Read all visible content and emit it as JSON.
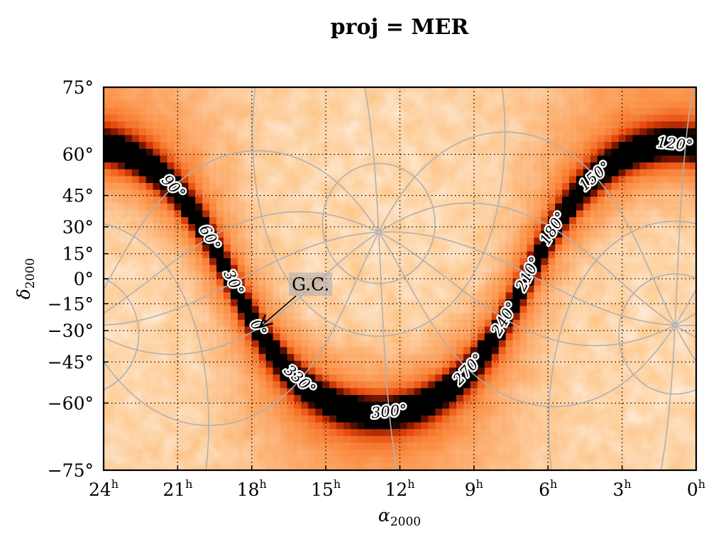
{
  "chart_data": {
    "type": "heatmap",
    "title": "proj = MER",
    "xlabel": "α",
    "xlabel_sub": "2000",
    "ylabel": "δ",
    "ylabel_sub": "2000",
    "xlim_hours": [
      24,
      0
    ],
    "ylim_deg": [
      -75,
      75
    ],
    "x_ticks": [
      {
        "value": 24,
        "label": "24",
        "unit": "h"
      },
      {
        "value": 21,
        "label": "21",
        "unit": "h"
      },
      {
        "value": 18,
        "label": "18",
        "unit": "h"
      },
      {
        "value": 15,
        "label": "15",
        "unit": "h"
      },
      {
        "value": 12,
        "label": "12",
        "unit": "h"
      },
      {
        "value": 9,
        "label": "9",
        "unit": "h"
      },
      {
        "value": 6,
        "label": "6",
        "unit": "h"
      },
      {
        "value": 3,
        "label": "3",
        "unit": "h"
      },
      {
        "value": 0,
        "label": "0",
        "unit": "h"
      }
    ],
    "y_ticks": [
      {
        "value": 75,
        "label": "75°"
      },
      {
        "value": 60,
        "label": "60°"
      },
      {
        "value": 45,
        "label": "45°"
      },
      {
        "value": 30,
        "label": "30°"
      },
      {
        "value": 15,
        "label": "15°"
      },
      {
        "value": 0,
        "label": "0°"
      },
      {
        "value": -15,
        "label": "−15°"
      },
      {
        "value": -30,
        "label": "−30°"
      },
      {
        "value": -45,
        "label": "−45°"
      },
      {
        "value": -60,
        "label": "−60°"
      },
      {
        "value": -75,
        "label": "−75°"
      }
    ],
    "grid": "dotted",
    "colormap": [
      "#ffffff",
      "#fde6cf",
      "#fb9f5a",
      "#e8500e",
      "#8e1c00",
      "#000000"
    ],
    "galactic_graticule_color": "#b0b0b0",
    "galactic_equator_color": "#000000",
    "galactic_longitude_labels": [
      {
        "label": "0°",
        "l": 0
      },
      {
        "label": "30°",
        "l": 30
      },
      {
        "label": "60°",
        "l": 60
      },
      {
        "label": "90°",
        "l": 90
      },
      {
        "label": "120°",
        "l": 120
      },
      {
        "label": "150°",
        "l": 150
      },
      {
        "label": "180°",
        "l": 180
      },
      {
        "label": "210°",
        "l": 210
      },
      {
        "label": "240°",
        "l": 240
      },
      {
        "label": "270°",
        "l": 270
      },
      {
        "label": "300°",
        "l": 300
      },
      {
        "label": "330°",
        "l": 330
      }
    ],
    "galactic_meridians_l": [
      0,
      30,
      60,
      90,
      120,
      150,
      180,
      210,
      240,
      270,
      300,
      330
    ],
    "galactic_parallels_b": [
      -60,
      -30,
      30,
      60
    ],
    "annotation": {
      "text": "G.C.",
      "ra_hours": 17.76,
      "dec_deg": -28.94
    }
  }
}
